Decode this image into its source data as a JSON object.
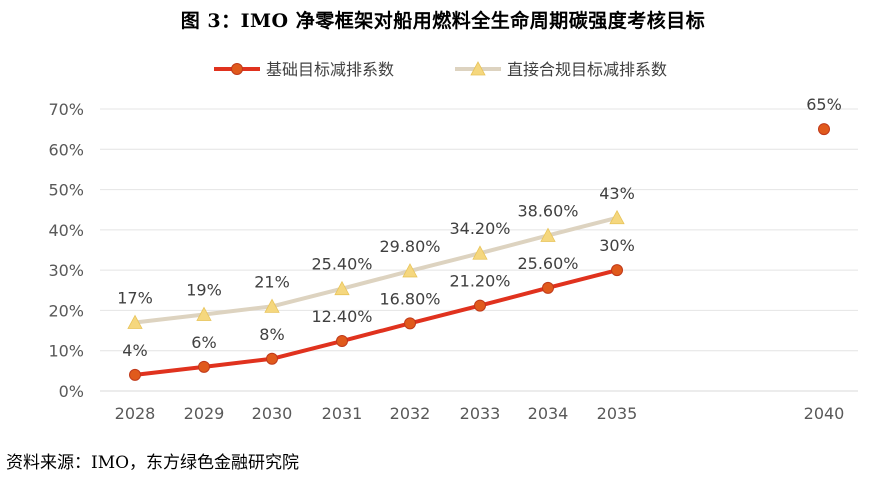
{
  "title": "图 3：IMO 净零框架对船用燃料全生命周期碳强度考核目标",
  "source": "资料来源：IMO，东方绿色金融研究院",
  "chart_data": {
    "type": "line",
    "categories": [
      "2028",
      "2029",
      "2030",
      "2031",
      "2032",
      "2033",
      "2034",
      "2035",
      "2040"
    ],
    "ylim": [
      0,
      70
    ],
    "yticks": [
      0,
      10,
      20,
      30,
      40,
      50,
      60,
      70
    ],
    "ytick_labels": [
      "0%",
      "10%",
      "20%",
      "30%",
      "40%",
      "50%",
      "60%",
      "70%"
    ],
    "grid": true,
    "legend_position": "top-center",
    "series": [
      {
        "name": "基础目标减排系数",
        "color": "#e0321e",
        "marker": "circle",
        "values": [
          4,
          6,
          8,
          12.4,
          16.8,
          21.2,
          25.6,
          30,
          65
        ],
        "labels": [
          "4%",
          "6%",
          "8%",
          "12.40%",
          "16.80%",
          "21.20%",
          "25.60%",
          "30%",
          "65%"
        ],
        "connected_through_index": 7
      },
      {
        "name": "直接合规目标减排系数",
        "color": "#ddd3c0",
        "marker_color": "#f5d77e",
        "marker": "triangle",
        "values": [
          17,
          19,
          21,
          25.4,
          29.8,
          34.2,
          38.6,
          43,
          null
        ],
        "labels": [
          "17%",
          "19%",
          "21%",
          "25.40%",
          "29.80%",
          "34.20%",
          "38.60%",
          "43%",
          ""
        ]
      }
    ]
  }
}
